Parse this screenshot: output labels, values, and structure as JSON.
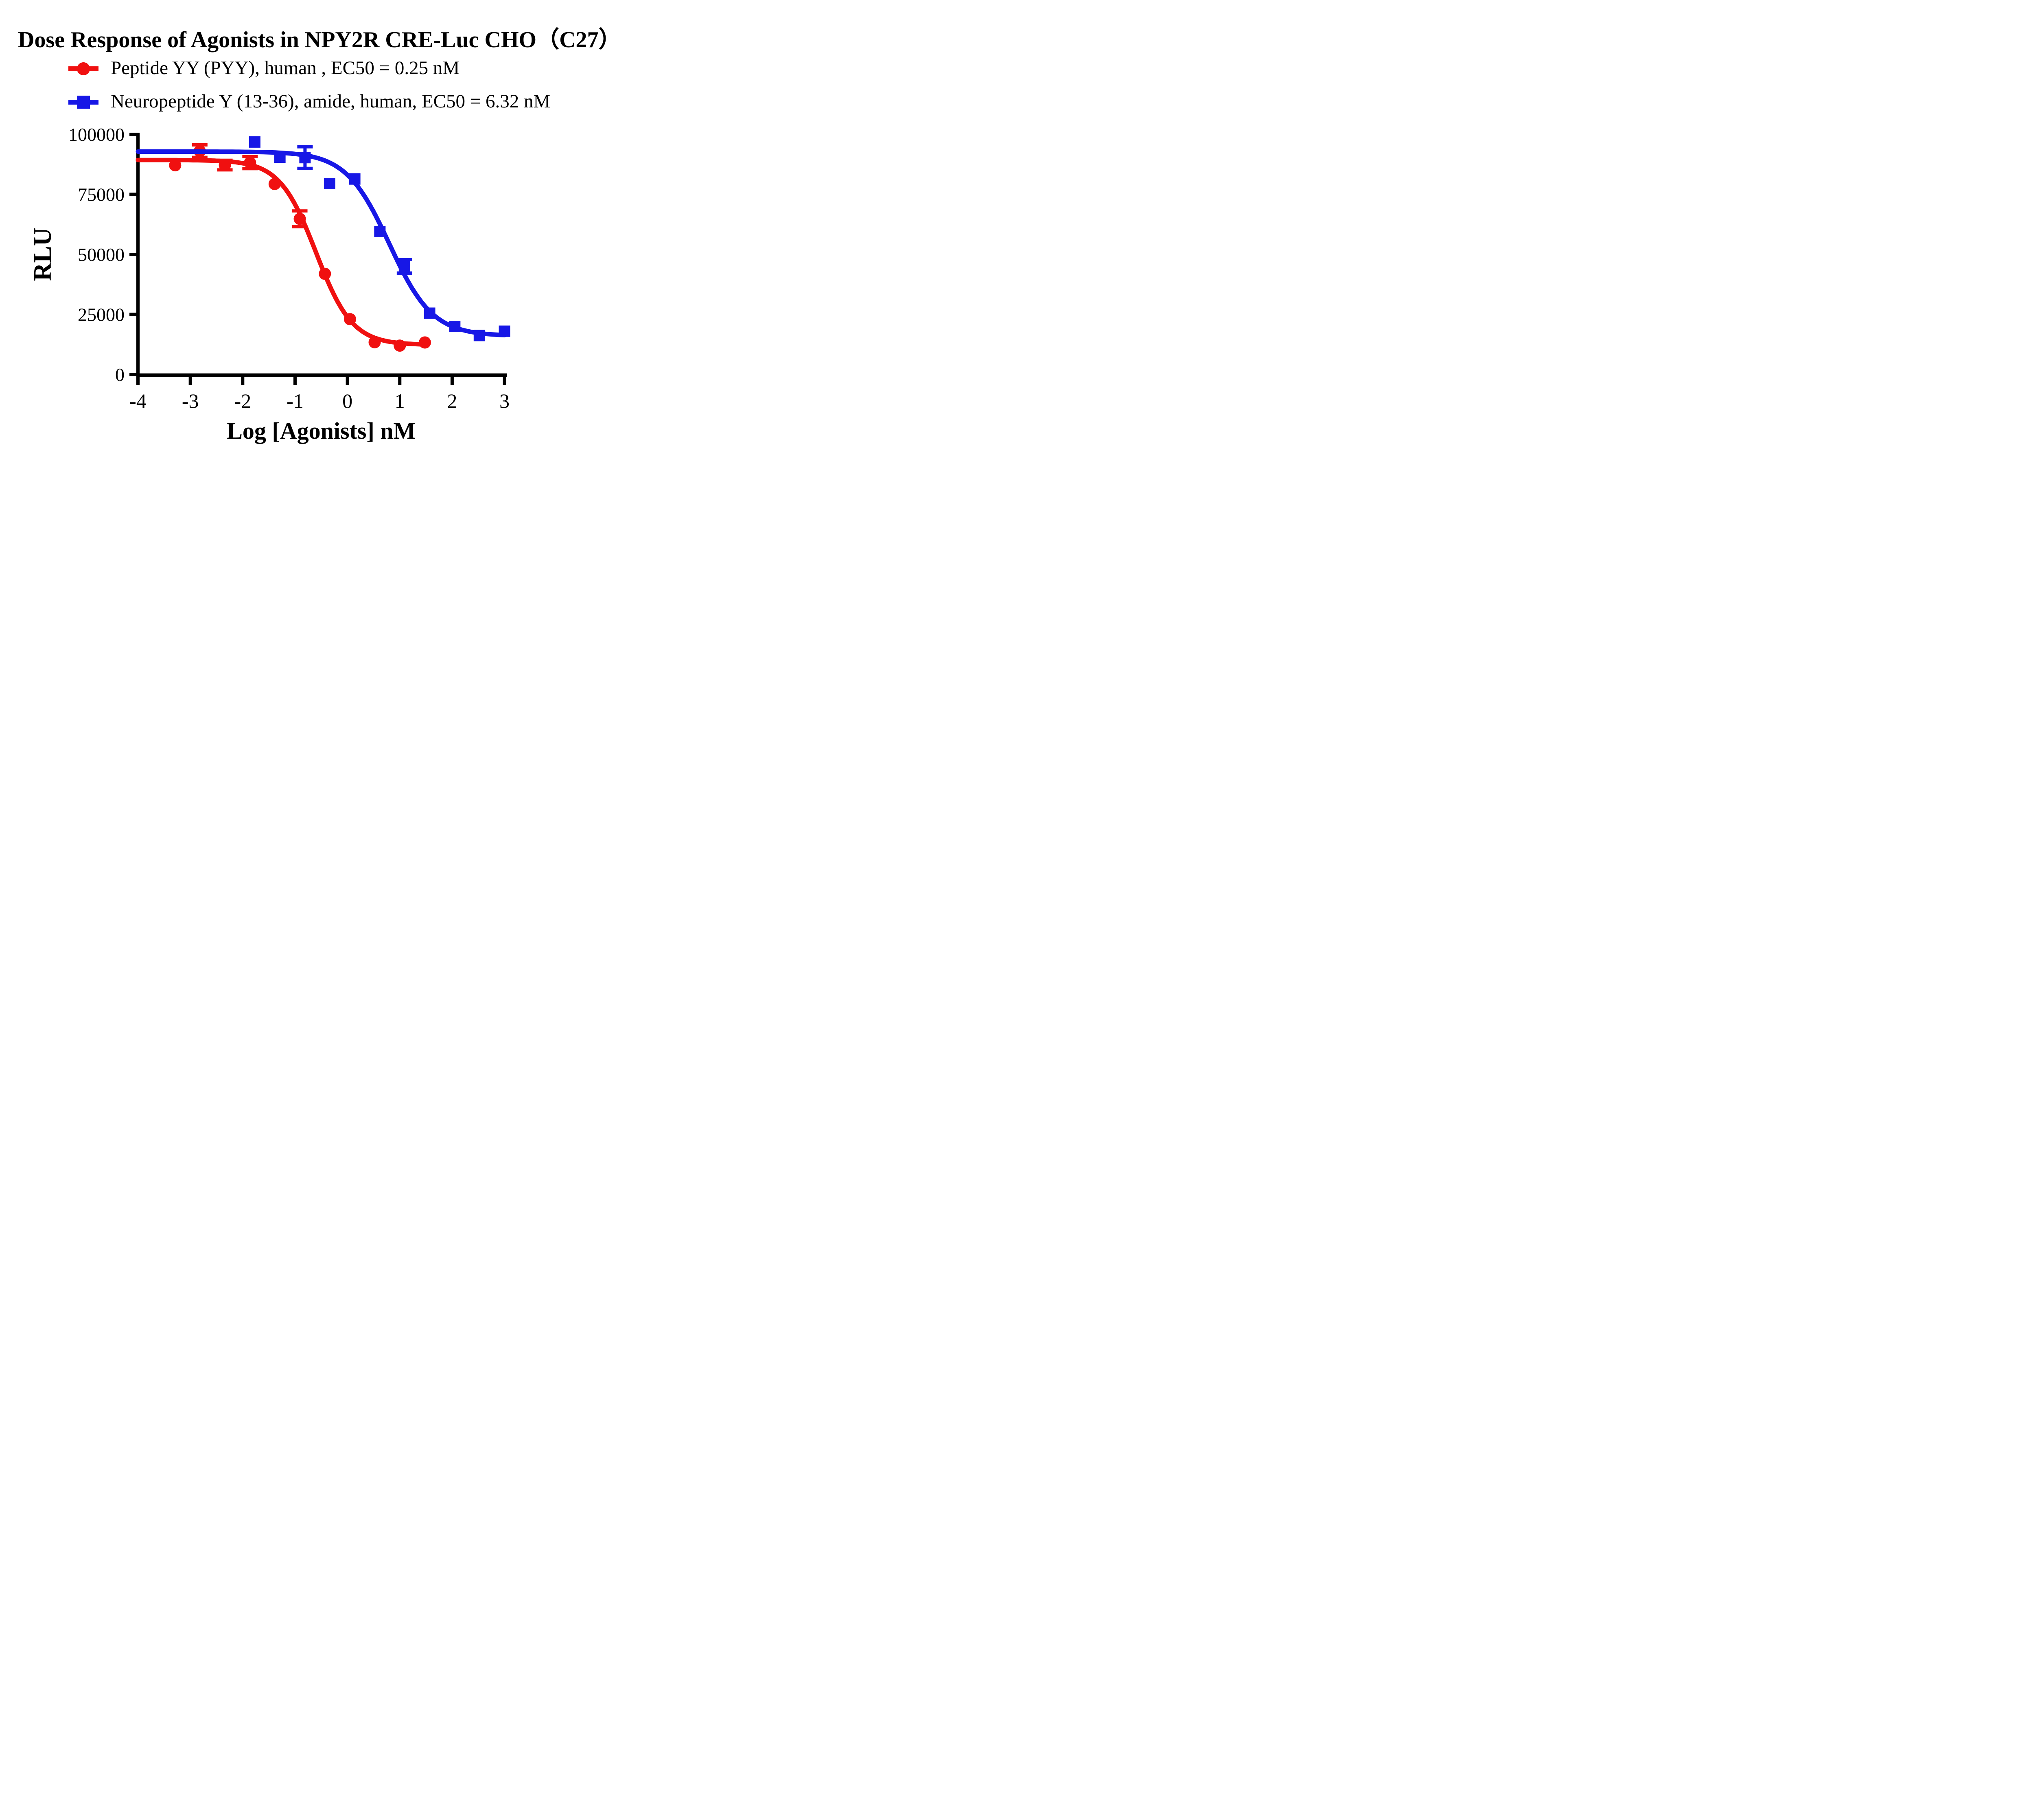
{
  "title": "Dose Response of Agonists in NPY2R CRE-Luc CHO（C27）",
  "legend": [
    {
      "label": "Peptide YY (PYY), human , EC50 = 0.25 nM",
      "color": "#f01010",
      "marker": "circle"
    },
    {
      "label": "Neuropeptide Y (13-36), amide, human, EC50 = 6.32 nM",
      "color": "#1717e6",
      "marker": "square"
    }
  ],
  "colors": {
    "red": "#f01010",
    "blue": "#1717e6",
    "axis": "#000000",
    "background": "#ffffff"
  },
  "chart_data": {
    "type": "scatter",
    "title": "Dose Response of Agonists in NPY2R CRE-Luc CHO（C27）",
    "xlabel": "Log [Agonists] nM",
    "ylabel": "RLU",
    "xlim": [
      -4,
      3
    ],
    "ylim": [
      0,
      100000
    ],
    "xticks": [
      -4,
      -3,
      -2,
      -1,
      0,
      1,
      2,
      3
    ],
    "yticks": [
      0,
      25000,
      50000,
      75000,
      100000
    ],
    "grid": false,
    "legend_position": "top-left",
    "series": [
      {
        "name": "Peptide YY (PYY), human",
        "ec50_label": "EC50 = 0.25 nM",
        "ec50_nM": 0.25,
        "color": "#f01010",
        "marker": "circle",
        "x": [
          -3.29,
          -2.82,
          -2.34,
          -1.86,
          -1.39,
          -0.91,
          -0.43,
          0.05,
          0.52,
          1.0,
          1.48
        ],
        "y": [
          87100,
          93000,
          87200,
          88200,
          79300,
          64800,
          41900,
          23000,
          13400,
          12000,
          13300
        ],
        "yerr": [
          0,
          2600,
          2000,
          2500,
          0,
          3300,
          0,
          0,
          0,
          0,
          0
        ],
        "fit": {
          "top": 89300,
          "bottom": 12300,
          "logEC50": -0.6,
          "hill": 1.25,
          "xmin": -4,
          "xmax": 1.48
        }
      },
      {
        "name": "Neuropeptide Y (13-36), amide, human",
        "ec50_label": "EC50 = 6.32 nM",
        "ec50_nM": 6.32,
        "color": "#1717e6",
        "marker": "square",
        "x": [
          -1.77,
          -1.29,
          -0.81,
          -0.34,
          0.14,
          0.62,
          1.09,
          1.57,
          2.05,
          2.52,
          3.0
        ],
        "y": [
          96800,
          90500,
          90300,
          79500,
          81400,
          59500,
          45000,
          25500,
          20000,
          16200,
          18000
        ],
        "yerr": [
          0,
          0,
          4500,
          0,
          0,
          0,
          2800,
          0,
          0,
          0,
          0
        ],
        "fit": {
          "top": 92800,
          "bottom": 16000,
          "logEC50": 0.8,
          "hill": 1.05,
          "xmin": -4,
          "xmax": 3.0
        }
      }
    ]
  }
}
